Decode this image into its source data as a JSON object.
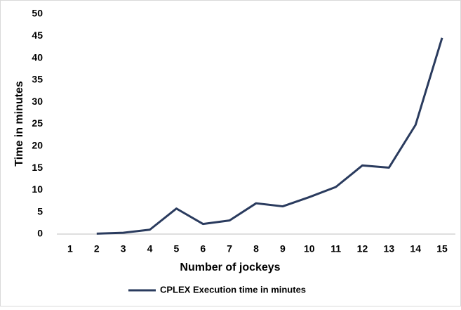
{
  "chart_data": {
    "type": "line",
    "x_label": "Number of jockeys",
    "y_label": "Time in minutes",
    "categories": [
      "1",
      "2",
      "3",
      "4",
      "5",
      "6",
      "7",
      "8",
      "9",
      "10",
      "11",
      "12",
      "13",
      "14",
      "15"
    ],
    "series": [
      {
        "name": "CPLEX Execution time in minutes",
        "color": "#2a3b5e",
        "values": [
          null,
          0.1,
          0.3,
          1.0,
          5.8,
          2.3,
          3.1,
          7.0,
          6.3,
          8.4,
          10.7,
          15.6,
          15.1,
          24.8,
          44.6
        ]
      }
    ],
    "ylim": [
      0,
      50
    ],
    "yticks": [
      0,
      5,
      10,
      15,
      20,
      25,
      30,
      35,
      40,
      45,
      50
    ],
    "grid": false,
    "legend": "bottom"
  }
}
